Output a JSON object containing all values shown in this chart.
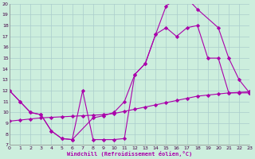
{
  "xlabel": "Windchill (Refroidissement éolien,°C)",
  "bg_color": "#cceedd",
  "grid_color": "#aacccc",
  "line_color": "#aa00aa",
  "xlim": [
    0,
    23
  ],
  "ylim": [
    7,
    20
  ],
  "xticks": [
    0,
    1,
    2,
    3,
    4,
    5,
    6,
    7,
    8,
    9,
    10,
    11,
    12,
    13,
    14,
    15,
    16,
    17,
    18,
    19,
    20,
    21,
    22,
    23
  ],
  "yticks": [
    7,
    8,
    9,
    10,
    11,
    12,
    13,
    14,
    15,
    16,
    17,
    18,
    19,
    20
  ],
  "curve1": {
    "x": [
      0,
      1,
      2,
      3,
      4,
      5,
      6,
      7,
      8,
      9,
      10,
      11,
      12,
      13,
      14,
      15,
      16,
      17,
      18,
      20,
      21,
      22,
      23
    ],
    "y": [
      12,
      11,
      10,
      9.8,
      8.3,
      7.6,
      7.5,
      12.0,
      7.5,
      7.5,
      7.5,
      7.6,
      13.5,
      14.5,
      17.2,
      19.8,
      20.5,
      20.5,
      19.5,
      17.8,
      15.0,
      13.0,
      11.8
    ]
  },
  "curve2": {
    "x": [
      0,
      1,
      2,
      3,
      4,
      5,
      6,
      8,
      9,
      10,
      11,
      12,
      13,
      14,
      15,
      16,
      17,
      18,
      19,
      20,
      21,
      22,
      23
    ],
    "y": [
      12,
      11,
      10,
      9.8,
      8.3,
      7.6,
      7.5,
      9.5,
      9.7,
      10.0,
      11.0,
      13.5,
      14.5,
      17.2,
      17.8,
      17.0,
      17.8,
      18.0,
      15.0,
      15.0,
      11.8,
      11.8,
      11.8
    ]
  },
  "curve3": {
    "x": [
      0,
      1,
      2,
      3,
      4,
      5,
      6,
      7,
      8,
      9,
      10,
      11,
      12,
      13,
      14,
      15,
      16,
      17,
      18,
      19,
      20,
      21,
      22,
      23
    ],
    "y": [
      9.2,
      9.3,
      9.4,
      9.5,
      9.55,
      9.6,
      9.65,
      9.7,
      9.75,
      9.8,
      9.9,
      10.1,
      10.3,
      10.5,
      10.7,
      10.9,
      11.1,
      11.3,
      11.5,
      11.6,
      11.7,
      11.8,
      11.85,
      11.9
    ]
  }
}
